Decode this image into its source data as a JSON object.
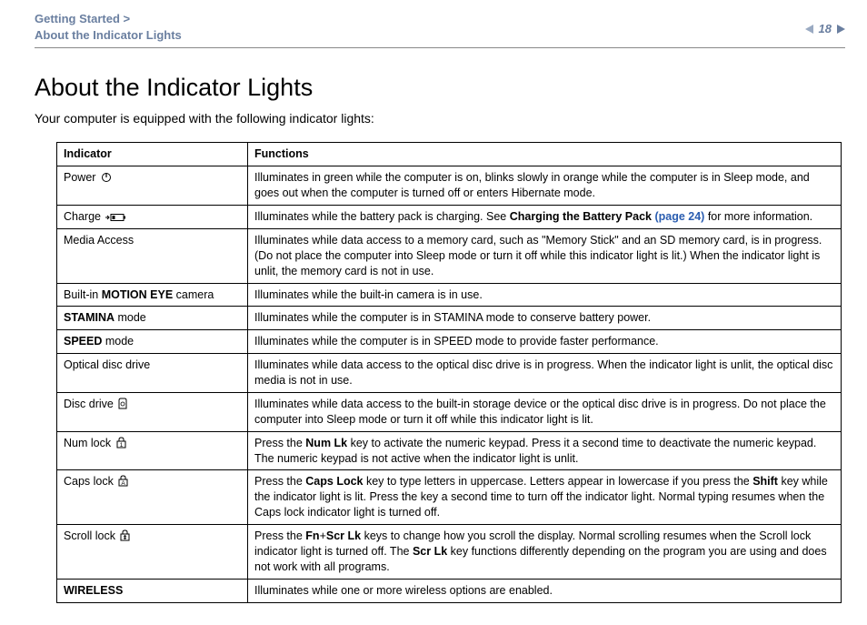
{
  "breadcrumb": {
    "line1": "Getting Started >",
    "line2": "About the Indicator Lights"
  },
  "page_number": "18",
  "title": "About the Indicator Lights",
  "intro": "Your computer is equipped with the following indicator lights:",
  "table": {
    "headers": {
      "indicator": "Indicator",
      "functions": "Functions"
    },
    "rows": [
      {
        "indicator_html": "Power <svg class='icon' width='12' height='12' viewBox='0 0 12 12'><circle cx='6' cy='6' r='4.5' fill='none' stroke='#000' stroke-width='1'/><line x1='6' y1='1' x2='6' y2='6' stroke='#000' stroke-width='1.2'/></svg>",
        "functions_html": "Illuminates in green while the computer is on, blinks slowly in orange while the computer is in Sleep mode, and goes out when the computer is turned off or enters Hibernate mode."
      },
      {
        "indicator_html": "Charge <svg class='icon' width='24' height='10' viewBox='0 0 24 10'><path d='M0 5 L4 5 M2 3 L4 5 L2 7' fill='none' stroke='#000' stroke-width='1'/><rect x='6' y='1.5' width='14' height='7' fill='none' stroke='#000' stroke-width='1'/><rect x='20' y='3.5' width='2' height='3' fill='#000'/><rect x='7.5' y='3' width='3' height='4' fill='#000'/></svg>",
        "functions_html": "Illuminates while the battery pack is charging. See <b>Charging the Battery Pack <span style='color:#2a5db0'>(page 24)</span></b> for more information."
      },
      {
        "indicator_html": "Media Access",
        "functions_html": "Illuminates while data access to a memory card, such as \"Memory Stick\" and an SD memory card, is in progress. (Do not place the computer into Sleep mode or turn it off while this indicator light is lit.) When the indicator light is unlit, the memory card is not in use."
      },
      {
        "indicator_html": "Built-in <b>MOTION EYE</b> camera",
        "functions_html": "Illuminates while the built-in camera is in use."
      },
      {
        "indicator_html": "<b>STAMINA</b> mode",
        "functions_html": "Illuminates while the computer is in STAMINA mode to conserve battery power."
      },
      {
        "indicator_html": "<b>SPEED</b> mode",
        "functions_html": "Illuminates while the computer is in SPEED mode to provide faster performance."
      },
      {
        "indicator_html": "Optical disc drive",
        "functions_html": "Illuminates while data access to the optical disc drive is in progress. When the indicator light is unlit, the optical disc media is not in use."
      },
      {
        "indicator_html": "Disc drive <svg class='icon' width='10' height='13' viewBox='0 0 10 13'><path d='M1 3 Q1 1 3 1 L7 1 Q9 1 9 3 L9 12 L1 12 Z' fill='none' stroke='#000' stroke-width='1'/><circle cx='5' cy='7' r='2' fill='none' stroke='#000' stroke-width='0.8'/></svg>",
        "functions_html": "Illuminates while data access to the built-in storage device or the optical disc drive is in progress. Do not place the computer into Sleep mode or turn it off while this indicator light is lit."
      },
      {
        "indicator_html": "Num lock <svg class='icon' width='11' height='13' viewBox='0 0 11 13'><rect x='1' y='5' width='9' height='7' fill='none' stroke='#000' stroke-width='1'/><path d='M3 5 L3 3 Q3 1 5.5 1 Q8 1 8 3 L8 5' fill='none' stroke='#000' stroke-width='1'/><text x='5.5' y='11' font-size='6.5' text-anchor='middle' font-family='Arial'>1</text></svg>",
        "functions_html": "Press the <b>Num Lk</b> key to activate the numeric keypad. Press it a second time to deactivate the numeric keypad. The numeric keypad is not active when the indicator light is unlit."
      },
      {
        "indicator_html": "Caps lock <svg class='icon' width='11' height='13' viewBox='0 0 11 13'><rect x='1' y='5' width='9' height='7' fill='none' stroke='#000' stroke-width='1'/><path d='M3 5 L3 3 Q3 1 5.5 1 Q8 1 8 3 L8 5' fill='none' stroke='#000' stroke-width='1'/><text x='5.5' y='11' font-size='6.5' text-anchor='middle' font-family='Arial'>A</text></svg>",
        "functions_html": "Press the <b>Caps Lock</b> key to type letters in uppercase. Letters appear in lowercase if you press the <b>Shift</b> key while the indicator light is lit. Press the key a second time to turn off the indicator light. Normal typing resumes when the Caps lock indicator light is turned off."
      },
      {
        "indicator_html": "Scroll lock <svg class='icon' width='11' height='13' viewBox='0 0 11 13'><rect x='1' y='5' width='9' height='7' fill='none' stroke='#000' stroke-width='1'/><path d='M3 5 L3 3 Q3 1 5.5 1 Q8 1 8 3 L8 5' fill='none' stroke='#000' stroke-width='1'/><path d='M5.5 6.5 L5.5 10.5 M4 8 L5.5 6.5 L7 8 M4 9 L5.5 10.5 L7 9' fill='none' stroke='#000' stroke-width='0.8'/></svg>",
        "functions_html": "Press the <b>Fn</b>+<b>Scr Lk</b> keys to change how you scroll the display. Normal scrolling resumes when the Scroll lock indicator light is turned off. The <b>Scr Lk</b> key functions differently depending on the program you are using and does not work with all programs."
      },
      {
        "indicator_html": "<b>WIRELESS</b>",
        "functions_html": "Illuminates while one or more wireless options are enabled."
      }
    ]
  }
}
